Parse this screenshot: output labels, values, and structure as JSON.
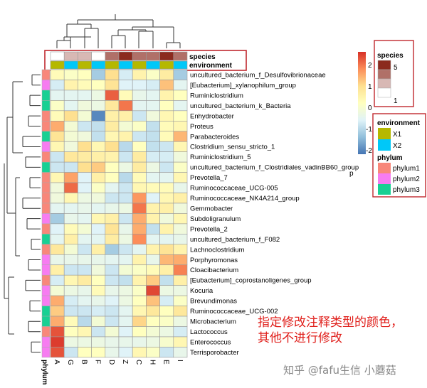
{
  "chart_data": {
    "type": "heatmap",
    "columns": [
      "A",
      "G",
      "B",
      "F",
      "D",
      "Z",
      "C",
      "H",
      "E",
      "I"
    ],
    "rows": [
      "uncultured_bacterium_f_Desulfovibrionaceae",
      "[Eubacterium]_xylanophilum_group",
      "Ruminiclostridium",
      "uncultured_bacterium_k_Bacteria",
      "Enhydrobacter",
      "Proteus",
      "Parabacteroides",
      "Clostridium_sensu_stricto_1",
      "Ruminiclostridium_5",
      "uncultured_bacterium_f_Clostridiales_vadinBB60_group",
      "Prevotella_7",
      "Ruminococcaceae_UCG-005",
      "Ruminococcaceae_NK4A214_group",
      "Gemmobacter",
      "Subdoligranulum",
      "Prevotella_2",
      "uncultured_bacterium_f_F082",
      "Lachnoclostridium",
      "Porphyromonas",
      "Cloacibacterium",
      "[Eubacterium]_coprostanoligenes_group",
      "Kocuria",
      "Brevundimonas",
      "Ruminococcaceae_UCG-002",
      "Microbacterium",
      "Lactococcus",
      "Enterococcus",
      "Terrisporobacter"
    ],
    "values": [
      [
        0.3,
        0.1,
        0.2,
        -1.2,
        1.0,
        -0.7,
        0.5,
        0.1,
        0.7,
        -1.2
      ],
      [
        -0.7,
        0.5,
        0.3,
        0.2,
        0.9,
        -0.6,
        -0.6,
        -0.7,
        1.3,
        -0.5
      ],
      [
        -0.5,
        -0.5,
        -0.5,
        -0.3,
        2.2,
        0.3,
        -0.4,
        -0.5,
        0.5,
        0.2
      ],
      [
        0.1,
        -0.5,
        -0.2,
        -0.3,
        0.8,
        2.0,
        -0.5,
        -0.5,
        0.2,
        -0.5
      ],
      [
        0.3,
        1.0,
        -0.1,
        -2.0,
        0.6,
        0.6,
        -0.8,
        -0.2,
        0.4,
        0.2
      ],
      [
        1.5,
        -0.1,
        -0.8,
        -0.9,
        0.7,
        -0.1,
        0.1,
        -0.9,
        0.3,
        0.4
      ],
      [
        0.9,
        -0.1,
        -0.2,
        -0.9,
        0.4,
        0.5,
        -0.8,
        -0.9,
        0.3,
        1.4
      ],
      [
        0.4,
        -0.2,
        1.0,
        0.4,
        1.0,
        -1.0,
        0.2,
        -0.9,
        -0.8,
        0.4
      ],
      [
        -0.8,
        0.8,
        0.7,
        0.6,
        0.5,
        -0.8,
        0.7,
        -0.7,
        -0.7,
        -0.2
      ],
      [
        -0.8,
        -0.8,
        1.0,
        1.2,
        0.2,
        -0.3,
        0.7,
        -0.3,
        -0.8,
        0.1
      ],
      [
        0.4,
        1.6,
        -0.6,
        0.6,
        0.2,
        -1.0,
        0.3,
        -0.5,
        -0.5,
        0.4
      ],
      [
        -0.2,
        2.1,
        -0.6,
        0.1,
        -0.5,
        -0.8,
        0.4,
        0.3,
        0.3,
        -0.4
      ],
      [
        -0.2,
        0.4,
        -0.3,
        -0.2,
        -0.8,
        -0.8,
        1.7,
        -0.6,
        0.4,
        0.6
      ],
      [
        -0.5,
        -0.5,
        -0.4,
        -0.5,
        -0.4,
        -0.3,
        2.0,
        0.5,
        0.6,
        -0.2
      ],
      [
        -1.2,
        -0.4,
        -0.5,
        0.4,
        0.6,
        -0.8,
        1.5,
        0.5,
        -0.2,
        0.4
      ],
      [
        -0.6,
        0.3,
        -0.1,
        -0.6,
        0.9,
        -0.4,
        1.5,
        -0.9,
        0.5,
        -0.2
      ],
      [
        -0.5,
        0.6,
        -0.5,
        -0.5,
        0.7,
        -0.3,
        1.8,
        -0.5,
        -0.5,
        -0.4
      ],
      [
        0.8,
        -0.1,
        -0.8,
        0.6,
        -1.2,
        -0.8,
        -0.5,
        0.5,
        0.9,
        0.5
      ],
      [
        -0.4,
        -0.4,
        -0.4,
        -0.4,
        -0.5,
        -0.5,
        0.5,
        -0.4,
        1.4,
        1.5
      ],
      [
        0.6,
        -0.8,
        -0.8,
        -0.2,
        -0.8,
        -0.1,
        0.1,
        0.3,
        0.6,
        1.9
      ],
      [
        -0.7,
        0.4,
        0.7,
        0.2,
        -0.8,
        -0.9,
        0.5,
        1.2,
        -0.9,
        0.6
      ],
      [
        -0.1,
        -0.3,
        -0.4,
        0.3,
        -0.4,
        -0.3,
        0.1,
        2.4,
        -0.3,
        -0.3
      ],
      [
        1.5,
        -0.7,
        -0.5,
        -0.4,
        -0.6,
        -0.3,
        0.2,
        1.3,
        -0.7,
        0.1
      ],
      [
        1.2,
        -0.8,
        -0.8,
        -0.7,
        -0.8,
        -0.5,
        0.4,
        0.8,
        0.2,
        0.8
      ],
      [
        1.5,
        0.3,
        -1.0,
        -0.1,
        -0.8,
        -0.5,
        1.1,
        0.2,
        0.1,
        -0.3
      ],
      [
        2.3,
        0.2,
        0.4,
        -0.8,
        -0.1,
        -0.6,
        0.2,
        -0.1,
        -0.3,
        -0.7
      ],
      [
        2.5,
        -0.3,
        -0.3,
        -0.3,
        -0.4,
        -0.4,
        -0.4,
        -0.3,
        0.0,
        0.4
      ],
      [
        2.3,
        -0.8,
        0.2,
        0.2,
        -0.4,
        -0.6,
        0.4,
        0.1,
        -0.8,
        -0.4
      ]
    ],
    "row_phylum": [
      1,
      2,
      3,
      3,
      1,
      1,
      3,
      2,
      1,
      3,
      1,
      1,
      1,
      1,
      2,
      1,
      3,
      1,
      2,
      2,
      1,
      2,
      2,
      3,
      3,
      1,
      2,
      2
    ],
    "col_species": [
      1,
      2,
      2,
      1,
      4,
      5,
      3,
      3,
      5,
      4
    ],
    "col_environment": [
      "X1",
      "X2",
      "X1",
      "X2",
      "X1",
      "X2",
      "X1",
      "X2",
      "X1",
      "X2"
    ],
    "color_scale": {
      "min": -2,
      "max": 2.5,
      "ticks": [
        "2",
        "1",
        "0",
        "-1",
        "-2"
      ],
      "stops": [
        "#4575b4",
        "#91bfdb",
        "#e0f3f8",
        "#ffffbf",
        "#fee090",
        "#fc8d59",
        "#d73027"
      ]
    },
    "annotation_titles": {
      "species": "species",
      "environment": "environment",
      "phylum": "phylum"
    },
    "legend": {
      "species_title": "species",
      "species_max": "5",
      "species_min": "1",
      "species_colors": [
        "#ffffff",
        "#d8b8b4",
        "#b07068",
        "#8b2a1e"
      ],
      "environment_title": "environment",
      "environment": [
        {
          "label": "X1",
          "color": "#b5b800"
        },
        {
          "label": "X2",
          "color": "#00c8f8"
        }
      ],
      "phylum_title": "phylum",
      "phylum": [
        {
          "label": "phylum1",
          "color": "#f8877a"
        },
        {
          "label": "phylum2",
          "color": "#f77cf1"
        },
        {
          "label": "phylum3",
          "color": "#18d093"
        }
      ]
    },
    "stray_label": "p",
    "highlight_color": "#c0282e"
  },
  "annotation_text": [
    "指定修改注释类型的颜色，",
    "其他不进行修改"
  ],
  "watermark": "知乎 @fafu生信 小蘑菇"
}
